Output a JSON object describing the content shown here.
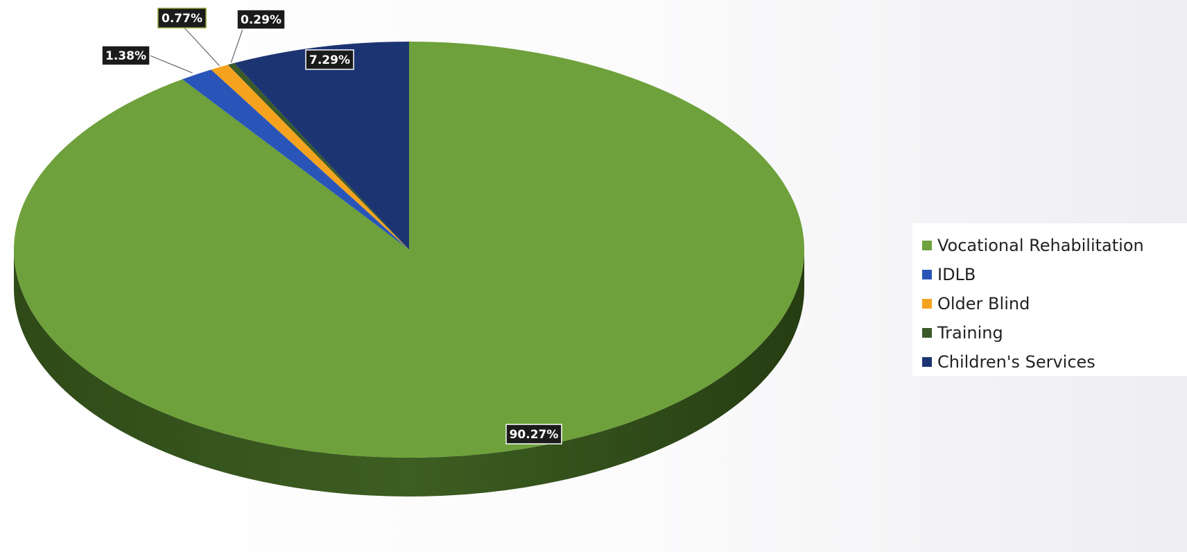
{
  "chart_data": {
    "type": "pie",
    "title": "",
    "legend_position": "right",
    "slices": [
      {
        "name": "Vocational Rehabilitation",
        "value": 90.27,
        "label": "90.27%",
        "color": "#6ea13b"
      },
      {
        "name": "IDLB",
        "value": 1.38,
        "label": "1.38%",
        "color": "#2a55b8"
      },
      {
        "name": "Older Blind",
        "value": 0.77,
        "label": "0.77%",
        "color": "#f5a31f"
      },
      {
        "name": "Training",
        "value": 0.29,
        "label": "0.29%",
        "color": "#3a5a2a"
      },
      {
        "name": "Children's Services",
        "value": 7.29,
        "label": "7.29%",
        "color": "#1c3572"
      }
    ]
  }
}
